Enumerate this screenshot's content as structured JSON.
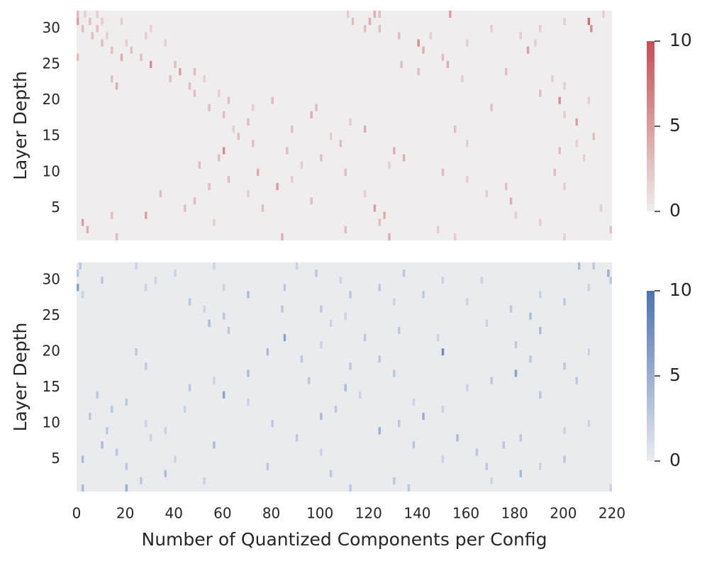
{
  "chart_data": [
    {
      "type": "heatmap",
      "ylabel": "Layer Depth",
      "xlim": [
        0,
        220
      ],
      "ylim": [
        0.5,
        32.5
      ],
      "yticks": [
        5,
        10,
        15,
        20,
        25,
        30
      ],
      "cmap": [
        "#efeded",
        "#c44e52"
      ],
      "colorbar": {
        "lim": [
          0,
          10
        ],
        "ticks": [
          0,
          5,
          10
        ]
      },
      "cells": [
        [
          0,
          32,
          3
        ],
        [
          3,
          32,
          2
        ],
        [
          8,
          32,
          2
        ],
        [
          111,
          32,
          2
        ],
        [
          122,
          32,
          4
        ],
        [
          124,
          32,
          3
        ],
        [
          153,
          32,
          5
        ],
        [
          216,
          32,
          2
        ],
        [
          0,
          31,
          5
        ],
        [
          5,
          31,
          3
        ],
        [
          10,
          31,
          2
        ],
        [
          18,
          31,
          2
        ],
        [
          113,
          31,
          3
        ],
        [
          120,
          31,
          4
        ],
        [
          210,
          31,
          8
        ],
        [
          200,
          31,
          2
        ],
        [
          2,
          30,
          3
        ],
        [
          8,
          30,
          3
        ],
        [
          30,
          30,
          2
        ],
        [
          118,
          30,
          3
        ],
        [
          124,
          30,
          3
        ],
        [
          170,
          30,
          2
        ],
        [
          211,
          30,
          6
        ],
        [
          190,
          30,
          2
        ],
        [
          6,
          29,
          3
        ],
        [
          12,
          29,
          2
        ],
        [
          28,
          29,
          2
        ],
        [
          132,
          29,
          3
        ],
        [
          145,
          29,
          2
        ],
        [
          182,
          29,
          2
        ],
        [
          10,
          28,
          3
        ],
        [
          20,
          28,
          2
        ],
        [
          36,
          28,
          2
        ],
        [
          140,
          28,
          6
        ],
        [
          160,
          28,
          2
        ],
        [
          188,
          28,
          2
        ],
        [
          14,
          27,
          3
        ],
        [
          22,
          27,
          3
        ],
        [
          142,
          27,
          4
        ],
        [
          185,
          27,
          5
        ],
        [
          0,
          26,
          3
        ],
        [
          18,
          26,
          4
        ],
        [
          26,
          26,
          3
        ],
        [
          150,
          26,
          3
        ],
        [
          30,
          25,
          6
        ],
        [
          40,
          25,
          3
        ],
        [
          133,
          25,
          3
        ],
        [
          152,
          25,
          4
        ],
        [
          42,
          24,
          5
        ],
        [
          48,
          24,
          3
        ],
        [
          140,
          24,
          3
        ],
        [
          176,
          24,
          3
        ],
        [
          14,
          23,
          3
        ],
        [
          38,
          23,
          3
        ],
        [
          52,
          23,
          2
        ],
        [
          158,
          23,
          2
        ],
        [
          195,
          23,
          2
        ],
        [
          16,
          22,
          4
        ],
        [
          46,
          22,
          3
        ],
        [
          200,
          22,
          2
        ],
        [
          48,
          21,
          3
        ],
        [
          58,
          21,
          2
        ],
        [
          190,
          21,
          3
        ],
        [
          62,
          20,
          3
        ],
        [
          80,
          20,
          3
        ],
        [
          198,
          20,
          6
        ],
        [
          210,
          20,
          2
        ],
        [
          54,
          19,
          3
        ],
        [
          72,
          19,
          2
        ],
        [
          98,
          19,
          3
        ],
        [
          170,
          19,
          3
        ],
        [
          60,
          18,
          3
        ],
        [
          96,
          18,
          4
        ],
        [
          200,
          18,
          2
        ],
        [
          70,
          17,
          3
        ],
        [
          112,
          17,
          2
        ],
        [
          205,
          17,
          5
        ],
        [
          64,
          16,
          2
        ],
        [
          88,
          16,
          3
        ],
        [
          118,
          16,
          4
        ],
        [
          155,
          16,
          3
        ],
        [
          66,
          15,
          3
        ],
        [
          104,
          15,
          2
        ],
        [
          212,
          15,
          3
        ],
        [
          72,
          14,
          3
        ],
        [
          108,
          14,
          3
        ],
        [
          160,
          14,
          2
        ],
        [
          205,
          14,
          2
        ],
        [
          60,
          13,
          6
        ],
        [
          86,
          13,
          3
        ],
        [
          130,
          13,
          4
        ],
        [
          198,
          13,
          3
        ],
        [
          58,
          12,
          3
        ],
        [
          100,
          12,
          3
        ],
        [
          134,
          12,
          4
        ],
        [
          208,
          12,
          2
        ],
        [
          50,
          11,
          3
        ],
        [
          92,
          11,
          2
        ],
        [
          128,
          11,
          2
        ],
        [
          74,
          10,
          4
        ],
        [
          110,
          10,
          3
        ],
        [
          150,
          10,
          3
        ],
        [
          196,
          10,
          3
        ],
        [
          62,
          9,
          3
        ],
        [
          88,
          9,
          2
        ],
        [
          160,
          9,
          2
        ],
        [
          54,
          8,
          3
        ],
        [
          82,
          8,
          5
        ],
        [
          176,
          8,
          3
        ],
        [
          200,
          8,
          2
        ],
        [
          34,
          7,
          3
        ],
        [
          70,
          7,
          2
        ],
        [
          118,
          7,
          2
        ],
        [
          168,
          7,
          2
        ],
        [
          48,
          6,
          3
        ],
        [
          96,
          6,
          3
        ],
        [
          178,
          6,
          4
        ],
        [
          44,
          5,
          3
        ],
        [
          76,
          5,
          3
        ],
        [
          122,
          5,
          5
        ],
        [
          215,
          5,
          2
        ],
        [
          14,
          4,
          3
        ],
        [
          28,
          4,
          5
        ],
        [
          126,
          4,
          4
        ],
        [
          180,
          4,
          2
        ],
        [
          2,
          3,
          5
        ],
        [
          56,
          3,
          2
        ],
        [
          124,
          3,
          3
        ],
        [
          190,
          3,
          2
        ],
        [
          4,
          2,
          4
        ],
        [
          110,
          2,
          3
        ],
        [
          148,
          2,
          2
        ],
        [
          219,
          2,
          3
        ],
        [
          16,
          1,
          3
        ],
        [
          84,
          1,
          4
        ],
        [
          128,
          1,
          4
        ],
        [
          155,
          1,
          2
        ],
        [
          200,
          1,
          2
        ]
      ]
    },
    {
      "type": "heatmap",
      "ylabel": "Layer Depth",
      "xlabel": "Number of Quantized Components per Config",
      "xlim": [
        0,
        220
      ],
      "ylim": [
        0.5,
        32.5
      ],
      "xticks": [
        0,
        20,
        40,
        60,
        80,
        100,
        120,
        140,
        160,
        180,
        200,
        220
      ],
      "yticks": [
        5,
        10,
        15,
        20,
        25,
        30
      ],
      "cmap": [
        "#eaebef",
        "#4c72b0"
      ],
      "colorbar": {
        "lim": [
          0,
          10
        ],
        "ticks": [
          0,
          5,
          10
        ]
      },
      "cells": [
        [
          1,
          32,
          3
        ],
        [
          24,
          32,
          2
        ],
        [
          56,
          32,
          2
        ],
        [
          90,
          32,
          2
        ],
        [
          206,
          32,
          4
        ],
        [
          212,
          32,
          3
        ],
        [
          0,
          31,
          3
        ],
        [
          40,
          31,
          2
        ],
        [
          98,
          31,
          3
        ],
        [
          134,
          31,
          3
        ],
        [
          218,
          31,
          5
        ],
        [
          10,
          30,
          3
        ],
        [
          32,
          30,
          2
        ],
        [
          108,
          30,
          2
        ],
        [
          150,
          30,
          2
        ],
        [
          166,
          30,
          2
        ],
        [
          219,
          30,
          3
        ],
        [
          0,
          29,
          6
        ],
        [
          28,
          29,
          2
        ],
        [
          60,
          29,
          2
        ],
        [
          85,
          29,
          3
        ],
        [
          124,
          29,
          3
        ],
        [
          210,
          29,
          2
        ],
        [
          2,
          28,
          2
        ],
        [
          70,
          28,
          4
        ],
        [
          112,
          28,
          3
        ],
        [
          142,
          28,
          3
        ],
        [
          190,
          28,
          2
        ],
        [
          46,
          27,
          3
        ],
        [
          130,
          27,
          2
        ],
        [
          160,
          27,
          2
        ],
        [
          200,
          27,
          3
        ],
        [
          52,
          26,
          2
        ],
        [
          84,
          26,
          3
        ],
        [
          100,
          26,
          3
        ],
        [
          178,
          26,
          3
        ],
        [
          60,
          25,
          3
        ],
        [
          110,
          25,
          2
        ],
        [
          186,
          25,
          4
        ],
        [
          54,
          24,
          4
        ],
        [
          104,
          24,
          2
        ],
        [
          168,
          24,
          2
        ],
        [
          62,
          23,
          3
        ],
        [
          132,
          23,
          3
        ],
        [
          190,
          23,
          4
        ],
        [
          85,
          22,
          6
        ],
        [
          118,
          22,
          3
        ],
        [
          148,
          22,
          2
        ],
        [
          100,
          21,
          2
        ],
        [
          180,
          21,
          3
        ],
        [
          24,
          20,
          3
        ],
        [
          78,
          20,
          4
        ],
        [
          150,
          20,
          8
        ],
        [
          210,
          20,
          2
        ],
        [
          92,
          19,
          3
        ],
        [
          124,
          19,
          3
        ],
        [
          186,
          19,
          3
        ],
        [
          28,
          18,
          3
        ],
        [
          112,
          18,
          3
        ],
        [
          200,
          18,
          3
        ],
        [
          70,
          17,
          4
        ],
        [
          130,
          17,
          3
        ],
        [
          180,
          17,
          6
        ],
        [
          56,
          16,
          2
        ],
        [
          95,
          16,
          3
        ],
        [
          170,
          16,
          3
        ],
        [
          205,
          16,
          3
        ],
        [
          46,
          15,
          3
        ],
        [
          110,
          15,
          4
        ],
        [
          160,
          15,
          2
        ],
        [
          8,
          14,
          3
        ],
        [
          60,
          14,
          6
        ],
        [
          116,
          14,
          2
        ],
        [
          190,
          14,
          3
        ],
        [
          20,
          13,
          3
        ],
        [
          70,
          13,
          2
        ],
        [
          138,
          13,
          2
        ],
        [
          14,
          12,
          3
        ],
        [
          44,
          12,
          2
        ],
        [
          106,
          12,
          3
        ],
        [
          150,
          12,
          2
        ],
        [
          5,
          11,
          3
        ],
        [
          100,
          11,
          4
        ],
        [
          142,
          11,
          5
        ],
        [
          28,
          10,
          2
        ],
        [
          80,
          10,
          3
        ],
        [
          132,
          10,
          3
        ],
        [
          210,
          10,
          2
        ],
        [
          12,
          9,
          3
        ],
        [
          36,
          9,
          2
        ],
        [
          124,
          9,
          5
        ],
        [
          200,
          9,
          2
        ],
        [
          30,
          8,
          2
        ],
        [
          90,
          8,
          3
        ],
        [
          156,
          8,
          4
        ],
        [
          182,
          8,
          3
        ],
        [
          10,
          7,
          4
        ],
        [
          56,
          7,
          4
        ],
        [
          138,
          7,
          3
        ],
        [
          175,
          7,
          3
        ],
        [
          16,
          6,
          3
        ],
        [
          100,
          6,
          2
        ],
        [
          164,
          6,
          3
        ],
        [
          2,
          5,
          4
        ],
        [
          40,
          5,
          2
        ],
        [
          150,
          5,
          2
        ],
        [
          200,
          5,
          3
        ],
        [
          20,
          4,
          3
        ],
        [
          78,
          4,
          3
        ],
        [
          168,
          4,
          3
        ],
        [
          190,
          4,
          2
        ],
        [
          36,
          3,
          4
        ],
        [
          104,
          3,
          3
        ],
        [
          182,
          3,
          4
        ],
        [
          26,
          2,
          3
        ],
        [
          52,
          2,
          2
        ],
        [
          130,
          2,
          3
        ],
        [
          170,
          2,
          2
        ],
        [
          2,
          1,
          4
        ],
        [
          20,
          1,
          5
        ],
        [
          112,
          1,
          3
        ],
        [
          136,
          1,
          3
        ],
        [
          219,
          1,
          2
        ]
      ]
    }
  ]
}
